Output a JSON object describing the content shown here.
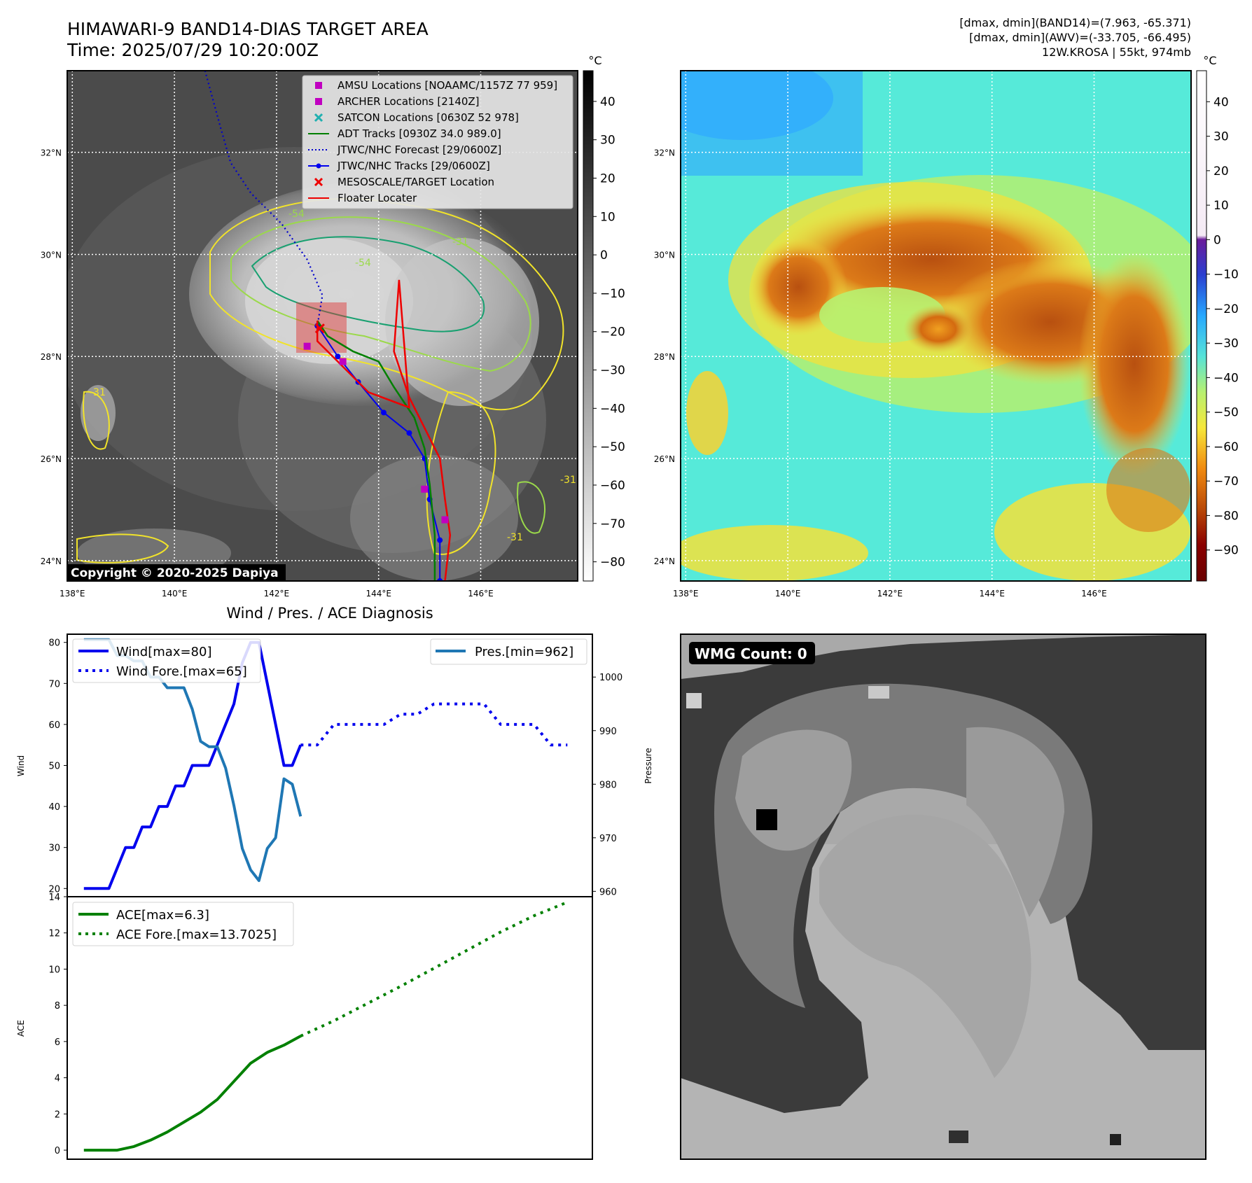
{
  "header": {
    "title_line1": "HIMAWARI-9 BAND14-DIAS TARGET AREA",
    "title_line2": "Time: 2025/07/29 10:20:00Z",
    "right_line1": "[dmax, dmin](BAND14)=(7.963, -65.371)",
    "right_line2": "[dmax, dmin](AWV)=(-33.705, -66.495)",
    "right_line3": "12W.KROSA | 55kt, 974mb"
  },
  "map": {
    "lat_labels": [
      "32°N",
      "30°N",
      "28°N",
      "26°N",
      "24°N"
    ],
    "lat_values": [
      32,
      30,
      28,
      26,
      24
    ],
    "lon_labels": [
      "138°E",
      "140°E",
      "142°E",
      "144°E",
      "146°E"
    ],
    "lon_values": [
      138,
      140,
      142,
      144,
      146
    ],
    "lon_range": [
      137.9,
      147.9
    ],
    "lat_range": [
      23.6,
      33.6
    ],
    "copyright": "Copyright © 2020-2025 Dapiya",
    "legend": [
      {
        "label": "AMSU Locations [NOAAMC/1157Z 77 959]",
        "kind": "square",
        "color": "#c000c0"
      },
      {
        "label": "ARCHER Locations [2140Z]",
        "kind": "square",
        "color": "#c000c0"
      },
      {
        "label": "SATCON Locations [0630Z 52 978]",
        "kind": "x",
        "color": "#20b0b0"
      },
      {
        "label": "ADT Tracks [0930Z 34.0 989.0]",
        "kind": "line",
        "color": "#008000"
      },
      {
        "label": "JTWC/NHC Forecast [29/0600Z]",
        "kind": "dotted",
        "color": "#0000cc"
      },
      {
        "label": "JTWC/NHC Tracks [29/0600Z]",
        "kind": "linedot",
        "color": "#0000ee"
      },
      {
        "label": "MESOSCALE/TARGET Location",
        "kind": "x",
        "color": "#ee0000"
      },
      {
        "label": "Floater Locater",
        "kind": "line",
        "color": "#ee0000"
      }
    ],
    "contour_labels": [
      "-54",
      "-31",
      "-54",
      "-31",
      "-31",
      "-31"
    ]
  },
  "colorbar_left": {
    "unit": "°C",
    "ticks": [
      "40",
      "30",
      "20",
      "10",
      "0",
      "−10",
      "−20",
      "−30",
      "−40",
      "−50",
      "−60",
      "−70",
      "−80"
    ],
    "range": [
      48,
      -85
    ]
  },
  "colorbar_right": {
    "unit": "°C",
    "ticks": [
      "40",
      "30",
      "20",
      "10",
      "0",
      "−10",
      "−20",
      "−30",
      "−40",
      "−50",
      "−60",
      "−70",
      "−80",
      "−90"
    ],
    "range": [
      49,
      -99
    ]
  },
  "wmg": {
    "label": "WMG Count: 0"
  },
  "chart_data": {
    "type": "line",
    "title": "Wind / Pres. / ACE Diagnosis",
    "top_panel": {
      "ylabel_left": "Wind",
      "ylabel_right": "Pressure",
      "ylim_left": [
        18,
        82
      ],
      "ylim_right": [
        959,
        1008
      ],
      "yticks_left": [
        20,
        30,
        40,
        50,
        60,
        70,
        80
      ],
      "yticks_right": [
        960,
        970,
        980,
        990,
        1000
      ],
      "series": [
        {
          "name": "Wind[max=80]",
          "axis": "left",
          "style": "solid",
          "color": "#0000ee",
          "x": [
            0,
            1,
            2,
            3,
            4,
            5,
            6,
            7,
            8,
            9,
            10,
            11,
            12,
            13,
            14,
            15,
            16,
            17,
            18,
            19,
            20,
            21,
            22,
            23,
            24,
            25,
            26
          ],
          "values": [
            20,
            20,
            20,
            20,
            25,
            30,
            30,
            35,
            35,
            40,
            40,
            45,
            45,
            50,
            50,
            50,
            55,
            60,
            65,
            75,
            80,
            80,
            70,
            60,
            50,
            50,
            55
          ]
        },
        {
          "name": "Wind Fore.[max=65]",
          "axis": "left",
          "style": "dotted",
          "color": "#0000ee",
          "x": [
            26,
            28,
            30,
            32,
            34,
            36,
            38,
            40,
            42,
            44,
            46,
            48,
            50,
            52,
            54,
            56,
            58
          ],
          "values": [
            55,
            55,
            60,
            60,
            60,
            60,
            62.5,
            62.5,
            65,
            65,
            65,
            65,
            60,
            60,
            60,
            55,
            55
          ]
        },
        {
          "name": "Pres.[min=962]",
          "axis": "right",
          "style": "solid",
          "color": "#1f77b4",
          "x": [
            0,
            1,
            2,
            3,
            4,
            5,
            6,
            7,
            8,
            9,
            10,
            11,
            12,
            13,
            14,
            15,
            16,
            17,
            18,
            19,
            20,
            21,
            22,
            23,
            24,
            25,
            26
          ],
          "values": [
            1007,
            1007,
            1007,
            1007,
            1004,
            1004,
            1003,
            1003,
            1000,
            1000,
            998,
            998,
            998,
            994,
            988,
            987,
            987,
            983,
            976,
            968,
            964,
            962,
            968,
            970,
            981,
            980,
            974
          ]
        }
      ]
    },
    "bottom_panel": {
      "ylabel": "ACE",
      "ylim": [
        -0.5,
        14
      ],
      "yticks": [
        0,
        2,
        4,
        6,
        8,
        10,
        12,
        14
      ],
      "series": [
        {
          "name": "ACE[max=6.3]",
          "style": "solid",
          "color": "#008000",
          "x": [
            0,
            2,
            4,
            6,
            8,
            10,
            12,
            14,
            16,
            18,
            20,
            22,
            24,
            26
          ],
          "values": [
            0,
            0,
            0,
            0.2,
            0.55,
            1.0,
            1.55,
            2.1,
            2.8,
            3.8,
            4.8,
            5.4,
            5.8,
            6.3
          ]
        },
        {
          "name": "ACE Fore.[max=13.7025]",
          "style": "dotted",
          "color": "#008000",
          "x": [
            26,
            30,
            34,
            38,
            42,
            46,
            50,
            54,
            58
          ],
          "values": [
            6.3,
            7.15,
            8.1,
            9.05,
            10.05,
            11.05,
            12.05,
            12.95,
            13.7
          ]
        }
      ]
    },
    "x_range": [
      -2,
      61
    ]
  }
}
